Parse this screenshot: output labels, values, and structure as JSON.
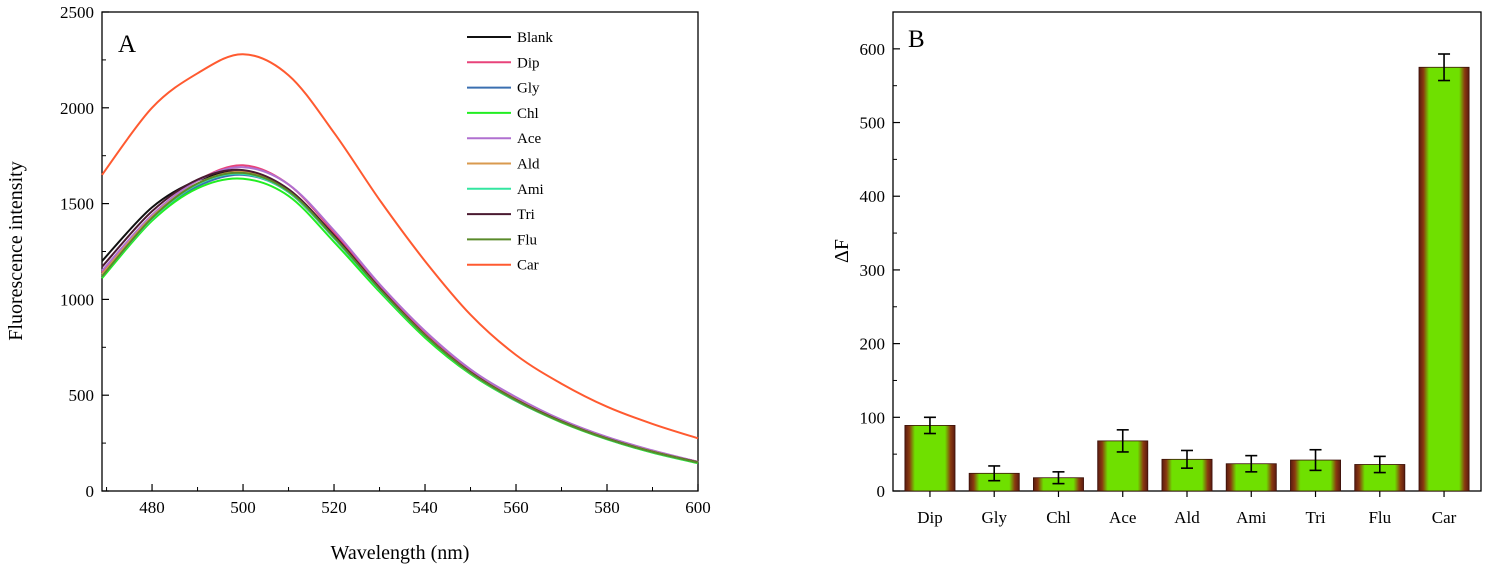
{
  "chart_data": [
    {
      "panel": "A",
      "type": "line",
      "xlabel": "Wavelength (nm)",
      "ylabel": "Fluorescence intensity",
      "xlim": [
        469,
        600
      ],
      "ylim": [
        0,
        2500
      ],
      "x_ticks": [
        480,
        500,
        520,
        540,
        560,
        580,
        600
      ],
      "y_ticks": [
        0,
        500,
        1000,
        1500,
        2000,
        2500
      ],
      "legend_position": "top-right",
      "x": [
        469,
        480,
        490,
        500,
        510,
        520,
        530,
        540,
        550,
        560,
        570,
        580,
        590,
        600
      ],
      "series": [
        {
          "name": "Blank",
          "color": "#111111",
          "values": [
            1200,
            1480,
            1620,
            1665,
            1560,
            1320,
            1050,
            810,
            620,
            480,
            365,
            275,
            205,
            150
          ]
        },
        {
          "name": "Dip",
          "color": "#e8437a",
          "values": [
            1140,
            1440,
            1620,
            1700,
            1600,
            1350,
            1070,
            830,
            630,
            485,
            370,
            280,
            210,
            152
          ]
        },
        {
          "name": "Gly",
          "color": "#3a6fb0",
          "values": [
            1130,
            1420,
            1590,
            1650,
            1560,
            1320,
            1050,
            810,
            615,
            470,
            360,
            272,
            205,
            150
          ]
        },
        {
          "name": "Chl",
          "color": "#22ee22",
          "values": [
            1110,
            1410,
            1580,
            1630,
            1540,
            1300,
            1040,
            800,
            610,
            470,
            358,
            270,
            200,
            145
          ]
        },
        {
          "name": "Ace",
          "color": "#b070d0",
          "values": [
            1150,
            1440,
            1620,
            1690,
            1600,
            1360,
            1080,
            835,
            635,
            490,
            372,
            282,
            212,
            152
          ]
        },
        {
          "name": "Ald",
          "color": "#d99a4e",
          "values": [
            1130,
            1430,
            1605,
            1665,
            1570,
            1330,
            1060,
            815,
            620,
            478,
            364,
            275,
            206,
            150
          ]
        },
        {
          "name": "Ami",
          "color": "#33e6a0",
          "values": [
            1120,
            1420,
            1600,
            1655,
            1560,
            1320,
            1050,
            810,
            615,
            472,
            360,
            272,
            203,
            148
          ]
        },
        {
          "name": "Tri",
          "color": "#4a1a30",
          "values": [
            1170,
            1460,
            1625,
            1675,
            1575,
            1335,
            1060,
            815,
            620,
            476,
            363,
            274,
            205,
            150
          ]
        },
        {
          "name": "Flu",
          "color": "#5a8a2a",
          "values": [
            1120,
            1425,
            1605,
            1660,
            1565,
            1325,
            1055,
            812,
            617,
            474,
            361,
            273,
            204,
            149
          ]
        },
        {
          "name": "Car",
          "color": "#ff5a30",
          "values": [
            1650,
            2000,
            2180,
            2280,
            2170,
            1870,
            1520,
            1200,
            920,
            710,
            560,
            440,
            350,
            275
          ]
        }
      ]
    },
    {
      "panel": "B",
      "type": "bar",
      "xlabel": "",
      "ylabel": "ΔF",
      "ylim": [
        0,
        650
      ],
      "y_ticks": [
        0,
        100,
        200,
        300,
        400,
        500,
        600
      ],
      "categories": [
        "Dip",
        "Gly",
        "Chl",
        "Ace",
        "Ald",
        "Ami",
        "Tri",
        "Flu",
        "Car"
      ],
      "values": [
        89,
        24,
        18,
        68,
        43,
        37,
        42,
        36,
        575
      ],
      "errors": [
        11,
        10,
        8,
        15,
        12,
        11,
        14,
        11,
        18
      ],
      "bar_color": "#6fe000",
      "bar_edge_color": "#5a1a10"
    }
  ]
}
